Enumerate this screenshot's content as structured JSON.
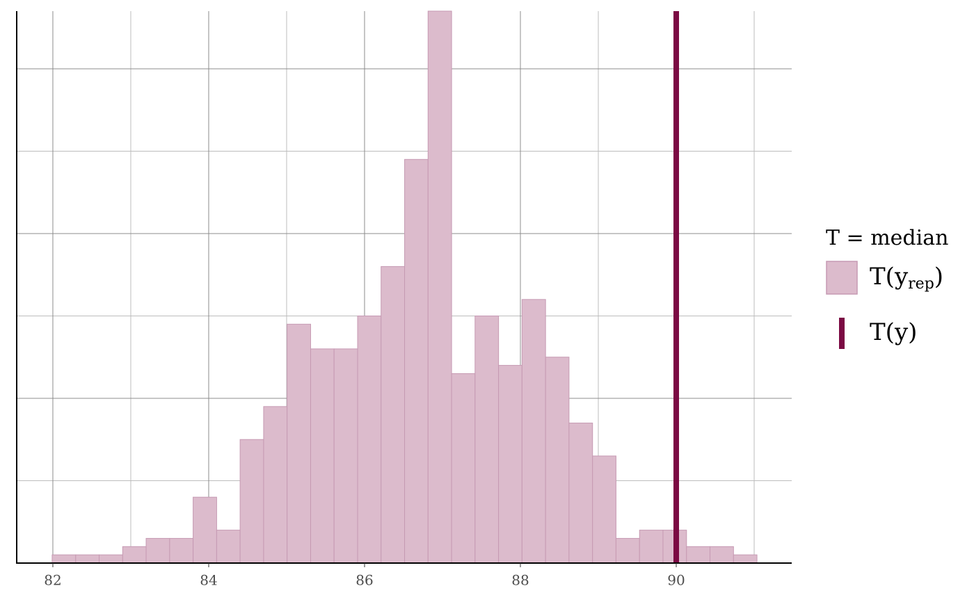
{
  "chart_data": {
    "type": "histogram",
    "bins": [
      81.991,
      82.293,
      82.594,
      82.896,
      83.197,
      83.499,
      83.8,
      84.102,
      84.403,
      84.705,
      85.006,
      85.308,
      85.609,
      85.911,
      86.212,
      86.514,
      86.815,
      87.117,
      87.418,
      87.72,
      88.021,
      88.323,
      88.624,
      88.926,
      89.227,
      89.529,
      89.83,
      90.132,
      90.433,
      90.735,
      91.036
    ],
    "values": [
      1,
      1,
      1,
      2,
      3,
      3,
      8,
      4,
      15,
      19,
      29,
      26,
      26,
      30,
      36,
      49,
      67,
      23,
      30,
      24,
      32,
      25,
      17,
      13,
      3,
      4,
      4,
      2,
      2,
      1
    ],
    "color": "#dcbbcc",
    "edge_color": "#c69ab3",
    "observed": {
      "value": 90,
      "color": "#7b0a43"
    },
    "xlim": [
      81.536,
      91.482
    ],
    "xticks": [
      82,
      84,
      86,
      88,
      90
    ],
    "xminor": [
      83,
      85,
      87,
      89,
      91
    ],
    "ylim": [
      0,
      67
    ],
    "yticks": [
      20,
      40,
      60
    ],
    "yminor": [
      10,
      30,
      50
    ],
    "grid": true,
    "legend": {
      "title": "T = median",
      "replicated": [
        "T(y",
        "rep",
        ")"
      ],
      "observed": "T(y)"
    }
  }
}
